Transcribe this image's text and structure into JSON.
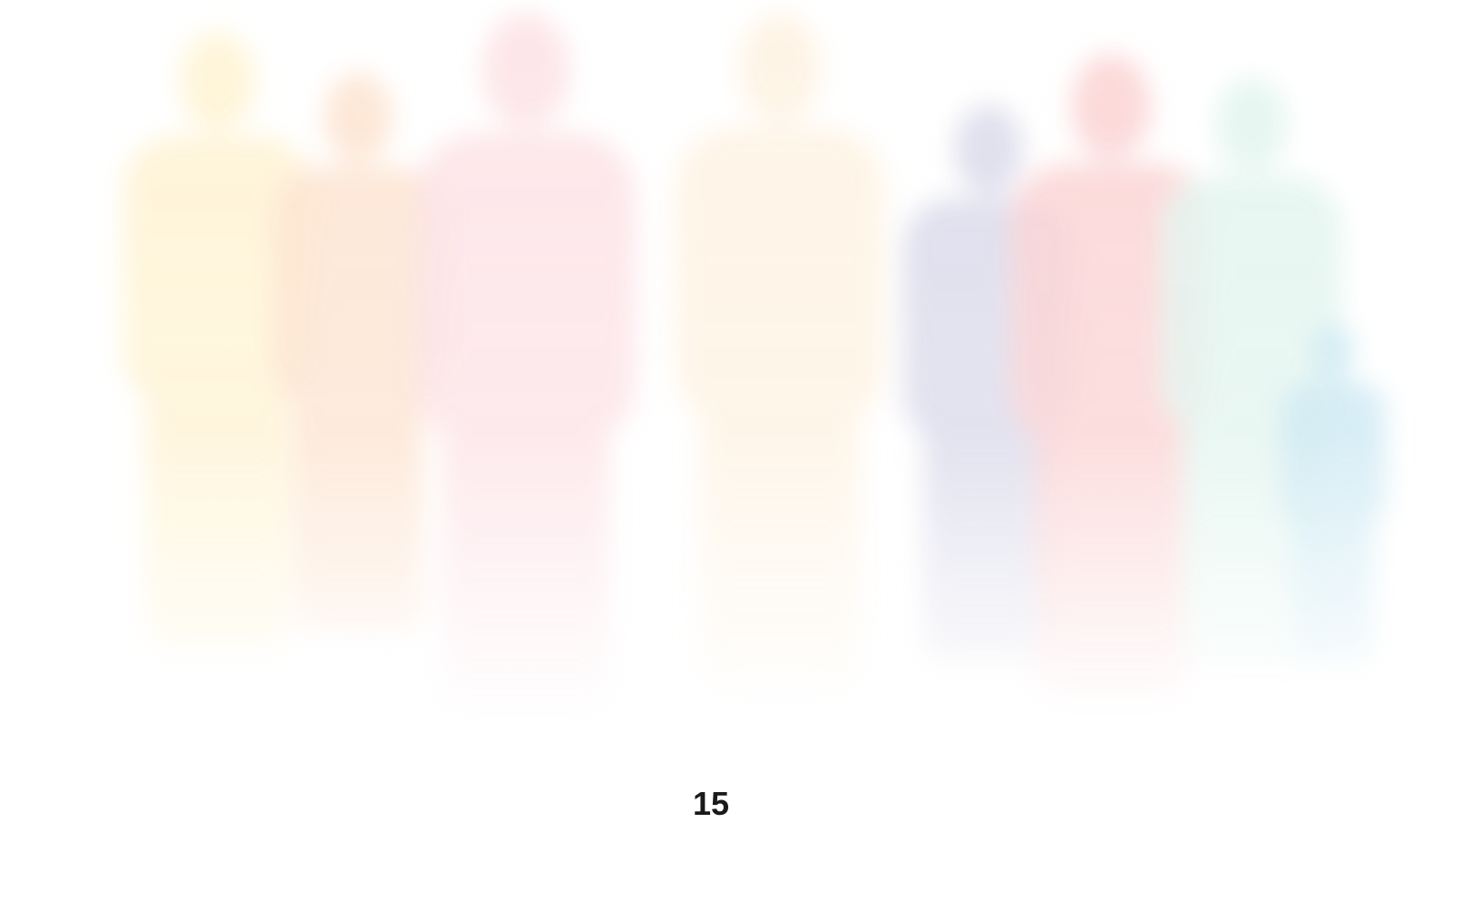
{
  "page_number": "15"
}
